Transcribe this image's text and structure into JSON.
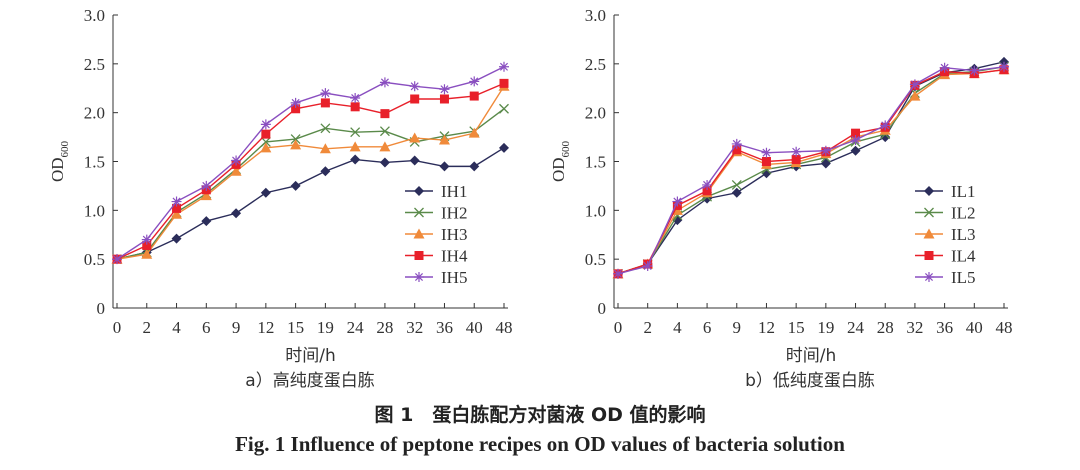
{
  "chart_data": [
    {
      "type": "line",
      "panel_label": "a）高纯度蛋白胨",
      "xlabel": "时间/h",
      "ylabel_main": "OD",
      "ylabel_sub": "600",
      "categories": [
        "0",
        "2",
        "4",
        "6",
        "9",
        "12",
        "15",
        "19",
        "24",
        "28",
        "32",
        "36",
        "40",
        "48"
      ],
      "ylim": [
        0,
        3.0
      ],
      "yticks": [
        "0",
        "0.5",
        "1.0",
        "1.5",
        "2.0",
        "2.5",
        "3.0"
      ],
      "legend_position": "lower-right",
      "series": [
        {
          "name": "IH1",
          "marker": "diamond",
          "color": "#2b2d5a",
          "values": [
            0.5,
            0.57,
            0.71,
            0.89,
            0.97,
            1.18,
            1.25,
            1.4,
            1.52,
            1.49,
            1.51,
            1.45,
            1.45,
            1.64
          ]
        },
        {
          "name": "IH2",
          "marker": "x",
          "color": "#5a8a4a",
          "values": [
            0.5,
            0.57,
            0.98,
            1.17,
            1.42,
            1.7,
            1.73,
            1.84,
            1.8,
            1.81,
            1.7,
            1.76,
            1.81,
            2.04
          ]
        },
        {
          "name": "IH3",
          "marker": "triangle",
          "color": "#f08a3a",
          "values": [
            0.5,
            0.55,
            0.96,
            1.15,
            1.4,
            1.64,
            1.67,
            1.63,
            1.65,
            1.65,
            1.74,
            1.72,
            1.79,
            2.27
          ]
        },
        {
          "name": "IH4",
          "marker": "square",
          "color": "#e8202a",
          "values": [
            0.5,
            0.64,
            1.02,
            1.21,
            1.47,
            1.78,
            2.04,
            2.1,
            2.06,
            1.99,
            2.14,
            2.14,
            2.17,
            2.3
          ]
        },
        {
          "name": "IH5",
          "marker": "star",
          "color": "#8a4fc0",
          "values": [
            0.5,
            0.7,
            1.09,
            1.25,
            1.51,
            1.88,
            2.1,
            2.2,
            2.15,
            2.31,
            2.27,
            2.24,
            2.32,
            2.47
          ]
        }
      ]
    },
    {
      "type": "line",
      "panel_label": "b）低纯度蛋白胨",
      "xlabel": "时间/h",
      "ylabel_main": "OD",
      "ylabel_sub": "600",
      "categories": [
        "0",
        "2",
        "4",
        "6",
        "9",
        "12",
        "15",
        "19",
        "24",
        "28",
        "32",
        "36",
        "40",
        "48"
      ],
      "ylim": [
        0,
        3.0
      ],
      "yticks": [
        "0",
        "0.5",
        "1.0",
        "1.5",
        "2.0",
        "2.5",
        "3.0"
      ],
      "legend_position": "lower-right",
      "series": [
        {
          "name": "IL1",
          "marker": "diamond",
          "color": "#2b2d5a",
          "values": [
            0.35,
            0.45,
            0.9,
            1.12,
            1.18,
            1.38,
            1.45,
            1.48,
            1.61,
            1.75,
            2.27,
            2.41,
            2.45,
            2.52
          ]
        },
        {
          "name": "IL2",
          "marker": "x",
          "color": "#5a8a4a",
          "values": [
            0.35,
            0.45,
            0.95,
            1.14,
            1.26,
            1.42,
            1.47,
            1.54,
            1.7,
            1.78,
            2.2,
            2.4,
            2.42,
            2.47
          ]
        },
        {
          "name": "IL3",
          "marker": "triangle",
          "color": "#f08a3a",
          "values": [
            0.35,
            0.45,
            1.0,
            1.18,
            1.6,
            1.47,
            1.49,
            1.58,
            1.75,
            1.82,
            2.17,
            2.39,
            2.4,
            2.44
          ]
        },
        {
          "name": "IL4",
          "marker": "square",
          "color": "#e8202a",
          "values": [
            0.35,
            0.45,
            1.05,
            1.2,
            1.62,
            1.5,
            1.52,
            1.6,
            1.79,
            1.85,
            2.28,
            2.42,
            2.4,
            2.44
          ]
        },
        {
          "name": "IL5",
          "marker": "star",
          "color": "#8a4fc0",
          "values": [
            0.35,
            0.43,
            1.09,
            1.26,
            1.68,
            1.59,
            1.6,
            1.61,
            1.72,
            1.87,
            2.29,
            2.46,
            2.43,
            2.47
          ]
        }
      ]
    }
  ],
  "caption": {
    "cn": "图 1　蛋白胨配方对菌液 OD 值的影响",
    "en": "Fig. 1   Influence of peptone recipes on OD values of bacteria solution"
  }
}
